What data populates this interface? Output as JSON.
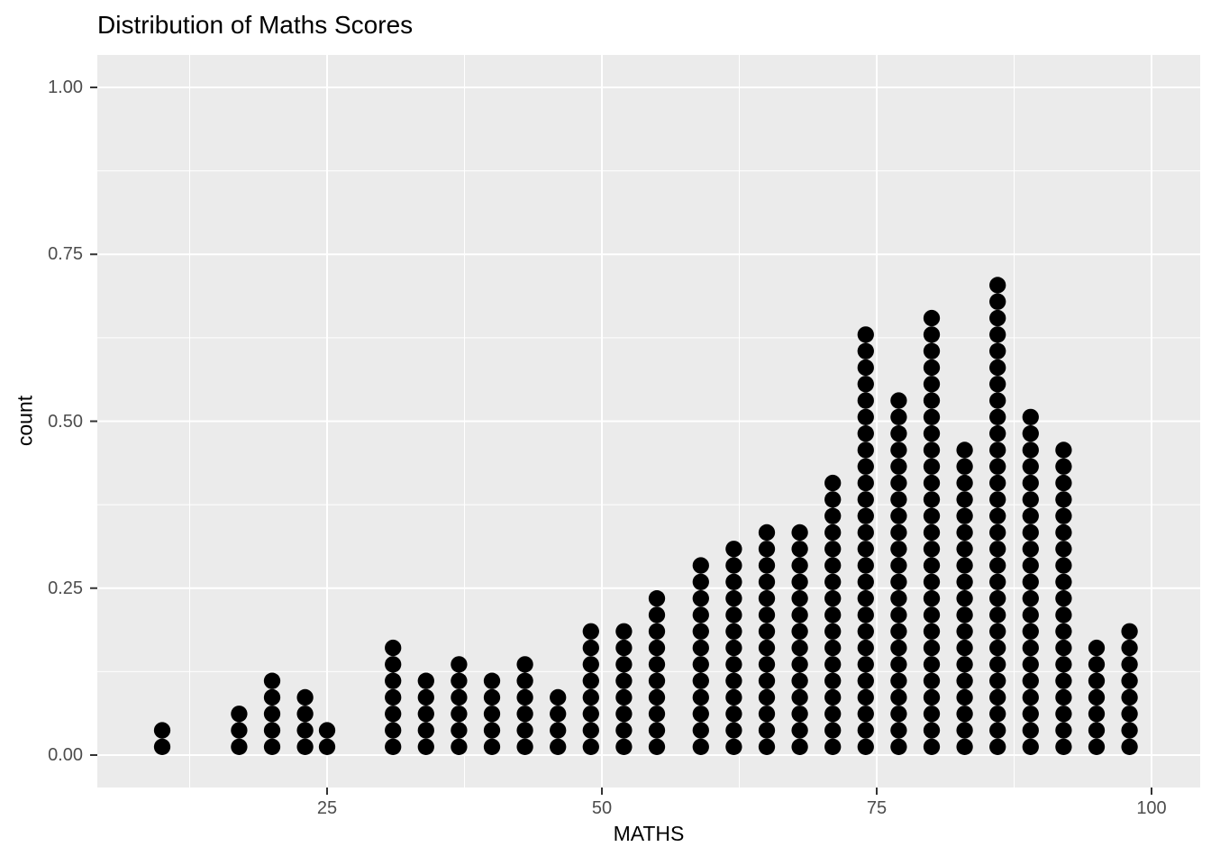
{
  "chart_data": {
    "type": "dotplot",
    "title": "Distribution of Maths Scores",
    "xlabel": "MATHS",
    "ylabel": "count",
    "x_ticks": [
      25,
      50,
      75,
      100
    ],
    "x_minor_ticks": [
      12.5,
      37.5,
      62.5,
      87.5
    ],
    "y_ticks": [
      0,
      0.25,
      0.5,
      0.75,
      1.0
    ],
    "y_tick_labels": [
      "0.00",
      "0.25",
      "0.50",
      "0.75",
      "1.00"
    ],
    "y_minor_ticks": [
      0.125,
      0.375,
      0.625,
      0.875
    ],
    "x_range_shown": [
      4.2,
      104.4
    ],
    "y_range_shown": [
      -0.05,
      1.04
    ],
    "grid": true,
    "legend": "none",
    "panel_bg": "#EBEBEB",
    "grid_color": "#FFFFFF",
    "dot_color": "#000000",
    "tick_mark_color": "#333333",
    "tick_label_color": "#4D4D4D",
    "columns": [
      {
        "x": 10,
        "count": 2
      },
      {
        "x": 17,
        "count": 3
      },
      {
        "x": 20,
        "count": 5
      },
      {
        "x": 23,
        "count": 4
      },
      {
        "x": 25,
        "count": 2
      },
      {
        "x": 31,
        "count": 7
      },
      {
        "x": 34,
        "count": 5
      },
      {
        "x": 37,
        "count": 6
      },
      {
        "x": 40,
        "count": 5
      },
      {
        "x": 43,
        "count": 6
      },
      {
        "x": 46,
        "count": 4
      },
      {
        "x": 49,
        "count": 8
      },
      {
        "x": 52,
        "count": 8
      },
      {
        "x": 55,
        "count": 10
      },
      {
        "x": 59,
        "count": 12
      },
      {
        "x": 62,
        "count": 13
      },
      {
        "x": 65,
        "count": 14
      },
      {
        "x": 68,
        "count": 14
      },
      {
        "x": 71,
        "count": 17
      },
      {
        "x": 74,
        "count": 26
      },
      {
        "x": 77,
        "count": 22
      },
      {
        "x": 80,
        "count": 27
      },
      {
        "x": 83,
        "count": 19
      },
      {
        "x": 86,
        "count": 29
      },
      {
        "x": 89,
        "count": 21
      },
      {
        "x": 92,
        "count": 19
      },
      {
        "x": 95,
        "count": 7
      },
      {
        "x": 98,
        "count": 8
      }
    ]
  }
}
